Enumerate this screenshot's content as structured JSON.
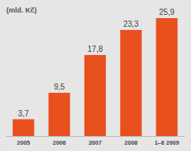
{
  "chart_data": {
    "type": "bar",
    "title": "(mld. Kč)",
    "categories": [
      "2005",
      "2006",
      "2007",
      "2008",
      "1–6 2009"
    ],
    "values": [
      3.7,
      9.5,
      17.8,
      23.3,
      25.9
    ],
    "value_labels": [
      "3,7",
      "9,5",
      "17,8",
      "23,3",
      "25,9"
    ],
    "color": "#e8501e",
    "data_labels": true,
    "tick_labels": "x",
    "grid": false
  }
}
